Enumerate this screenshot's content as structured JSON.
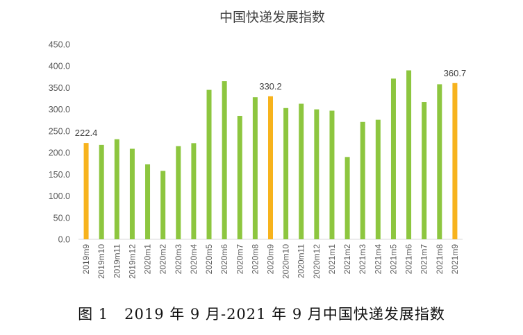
{
  "chart_data": {
    "type": "bar",
    "title": "中国快递发展指数",
    "xlabel": "",
    "ylabel": "",
    "ylim": [
      0,
      450
    ],
    "yticks": [
      "0.0",
      "50.0",
      "100.0",
      "150.0",
      "200.0",
      "250.0",
      "300.0",
      "350.0",
      "400.0",
      "450.0"
    ],
    "grid": false,
    "categories": [
      "2019m9",
      "2019m10",
      "2019m11",
      "2019m12",
      "2020m1",
      "2020m2",
      "2020m3",
      "2020m4",
      "2020m5",
      "2020m6",
      "2020m7",
      "2020m8",
      "2020m9",
      "2020m10",
      "2020m11",
      "2020m12",
      "2021m1",
      "2021m2",
      "2021m3",
      "2021m4",
      "2021m5",
      "2021m6",
      "2021m7",
      "2021m8",
      "2021m9"
    ],
    "values": [
      222.4,
      218,
      231,
      209,
      173,
      158,
      215,
      222,
      345,
      365,
      285,
      328,
      330.2,
      303,
      313,
      300,
      297,
      190,
      271,
      276,
      371,
      390,
      317,
      358,
      360.7
    ],
    "highlighted": [
      "2019m9",
      "2020m9",
      "2021m9"
    ],
    "data_labels": [
      {
        "category": "2019m9",
        "text": "222.4"
      },
      {
        "category": "2020m9",
        "text": "330.2"
      },
      {
        "category": "2021m9",
        "text": "360.7"
      }
    ],
    "colors": {
      "normal": "#8dc63f",
      "highlight": "#f7b31d",
      "text": "#595959"
    }
  },
  "caption": "图 1   2019 年 9 月-2021 年 9 月中国快递发展指数"
}
